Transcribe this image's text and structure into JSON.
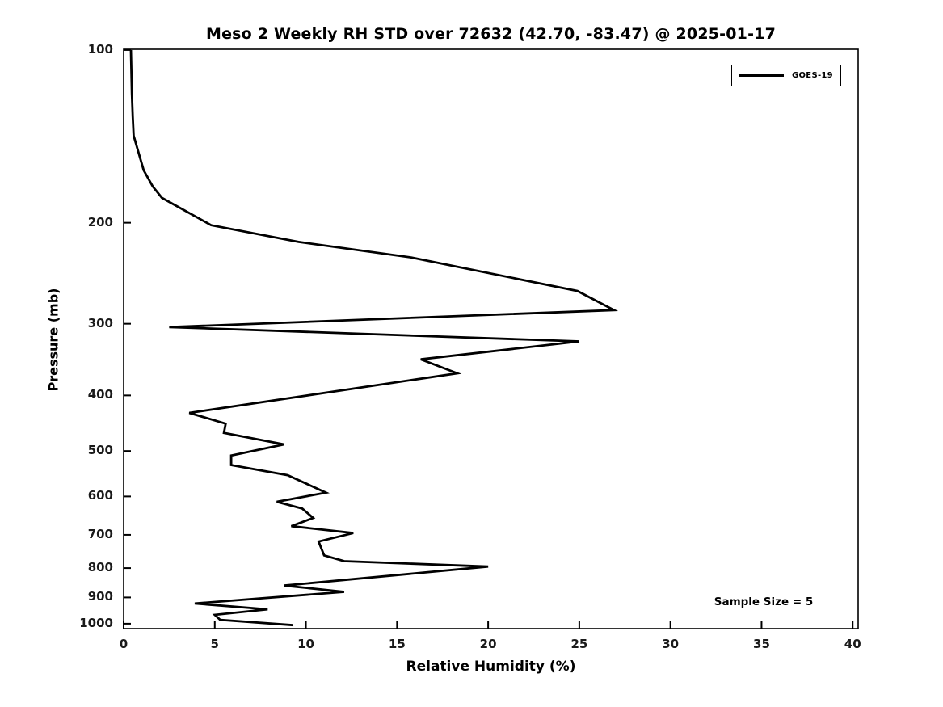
{
  "chart_data": {
    "type": "line",
    "title": "Meso 2 Weekly RH STD over 72632 (42.70, -83.47) @ 2025-01-17",
    "xlabel": "Relative Humidity (%)",
    "ylabel": "Pressure (mb)",
    "x_ticks": [
      0,
      5,
      10,
      15,
      20,
      25,
      30,
      35,
      40
    ],
    "y_ticks": [
      100,
      200,
      300,
      400,
      500,
      600,
      700,
      800,
      900,
      1000
    ],
    "xlim": [
      0,
      40.3
    ],
    "ylim_pressure": [
      1020,
      99.7
    ],
    "y_scale": "log",
    "grid": false,
    "legend": {
      "position": "upper-right",
      "entries": [
        {
          "label": "GOES-19",
          "color": "#000000"
        }
      ]
    },
    "annotation": "Sample Size = 5",
    "line_color": "#000000",
    "series": [
      {
        "name": "GOES-19",
        "color": "#000000",
        "points_rh_pressure": [
          [
            0.4,
            100
          ],
          [
            0.45,
            119
          ],
          [
            0.5,
            131
          ],
          [
            0.55,
            141
          ],
          [
            1.1,
            162
          ],
          [
            1.6,
            173
          ],
          [
            2.1,
            181
          ],
          [
            4.8,
            202
          ],
          [
            9.6,
            216
          ],
          [
            15.8,
            230
          ],
          [
            24.9,
            263
          ],
          [
            26.9,
            284
          ],
          [
            2.5,
            304
          ],
          [
            25.0,
            322
          ],
          [
            16.3,
            346
          ],
          [
            18.3,
            366
          ],
          [
            3.6,
            429
          ],
          [
            5.6,
            448
          ],
          [
            5.5,
            465
          ],
          [
            8.8,
            487
          ],
          [
            5.9,
            509
          ],
          [
            5.9,
            529
          ],
          [
            9.0,
            551
          ],
          [
            11.1,
            591
          ],
          [
            8.4,
            613
          ],
          [
            9.8,
            630
          ],
          [
            10.4,
            654
          ],
          [
            9.2,
            676
          ],
          [
            12.6,
            695
          ],
          [
            10.7,
            719
          ],
          [
            11.0,
            760
          ],
          [
            12.1,
            778
          ],
          [
            20.0,
            795
          ],
          [
            8.8,
            858
          ],
          [
            12.1,
            880
          ],
          [
            3.9,
            922
          ],
          [
            7.9,
            944
          ],
          [
            5.0,
            965
          ],
          [
            5.3,
            985
          ],
          [
            9.3,
            1006
          ]
        ]
      }
    ]
  }
}
